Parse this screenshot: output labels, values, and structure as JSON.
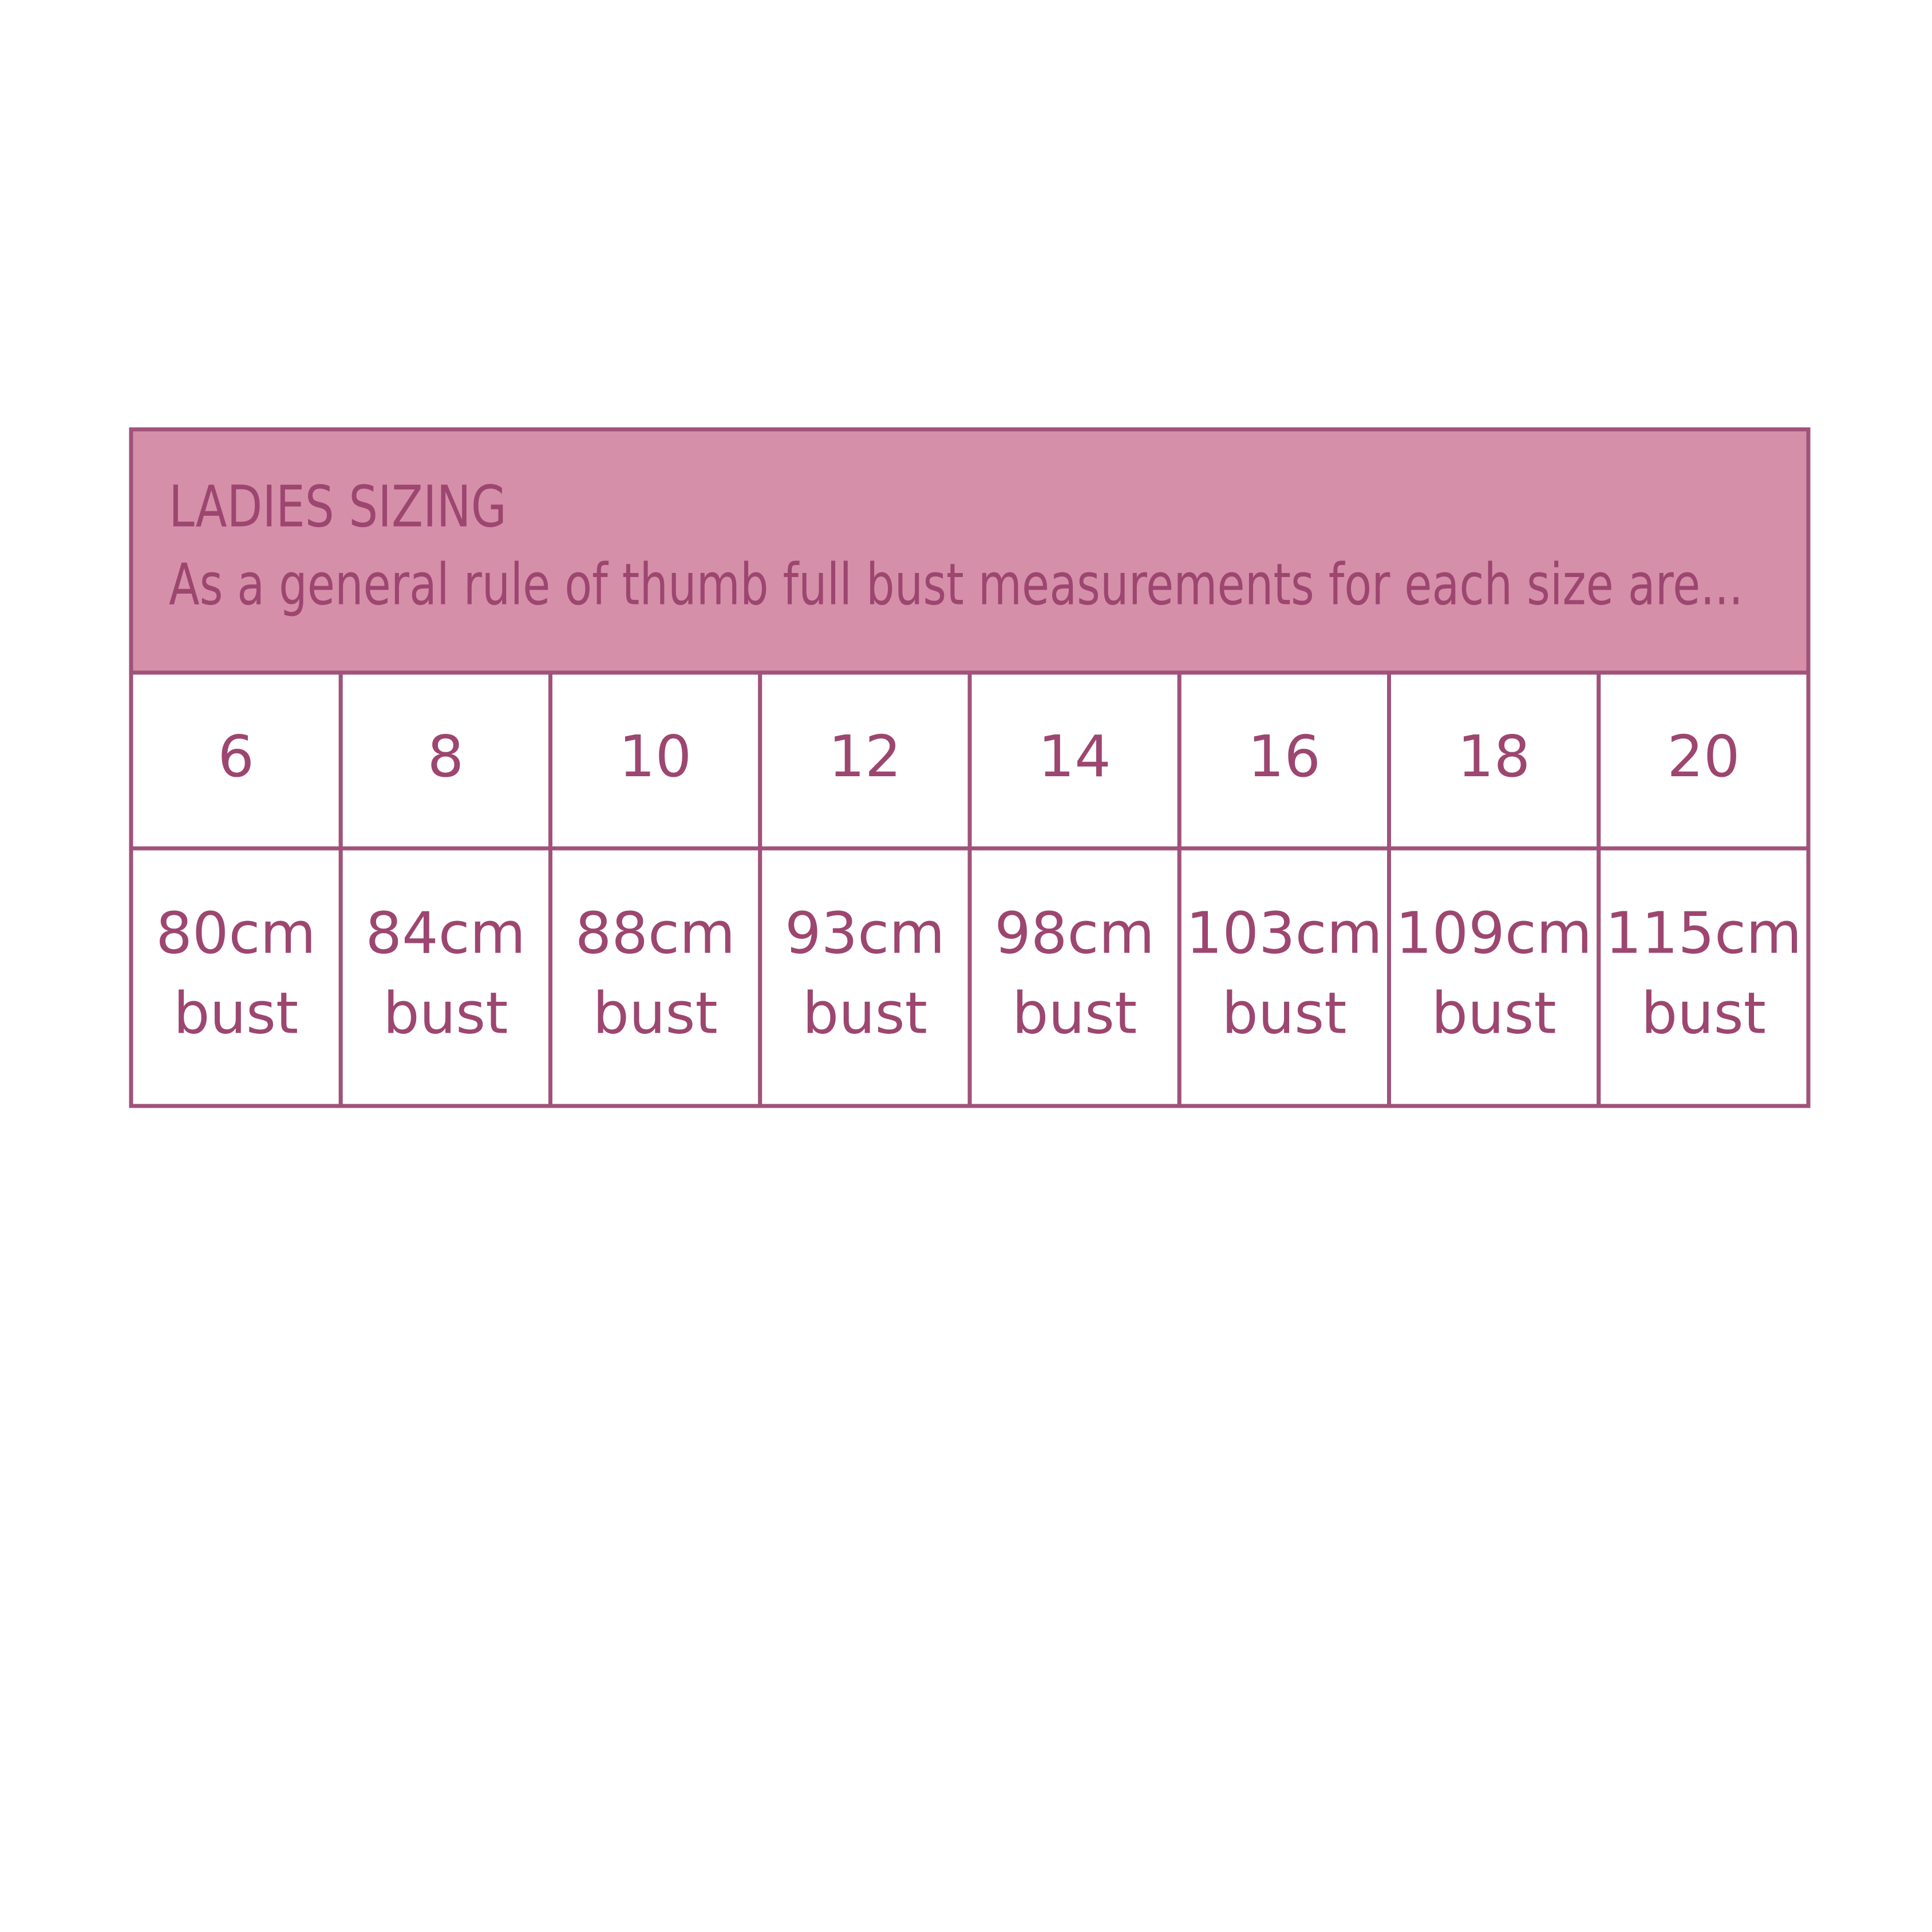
{
  "header": {
    "title": "LADIES SIZING",
    "subtitle": "As a general rule of thumb full bust measurements for each size are..."
  },
  "table": {
    "rows": [
      [
        [
          "6"
        ],
        [
          "8"
        ],
        [
          "10"
        ],
        [
          "12"
        ],
        [
          "14"
        ],
        [
          "16"
        ],
        [
          "18"
        ],
        [
          "20"
        ]
      ],
      [
        [
          "80cm",
          "bust"
        ],
        [
          "84cm",
          "bust"
        ],
        [
          "88cm",
          "bust"
        ],
        [
          "93cm",
          "bust"
        ],
        [
          "98cm",
          "bust"
        ],
        [
          "103cm",
          "bust"
        ],
        [
          "109cm",
          "bust"
        ],
        [
          "115cm",
          "bust"
        ]
      ]
    ]
  }
}
